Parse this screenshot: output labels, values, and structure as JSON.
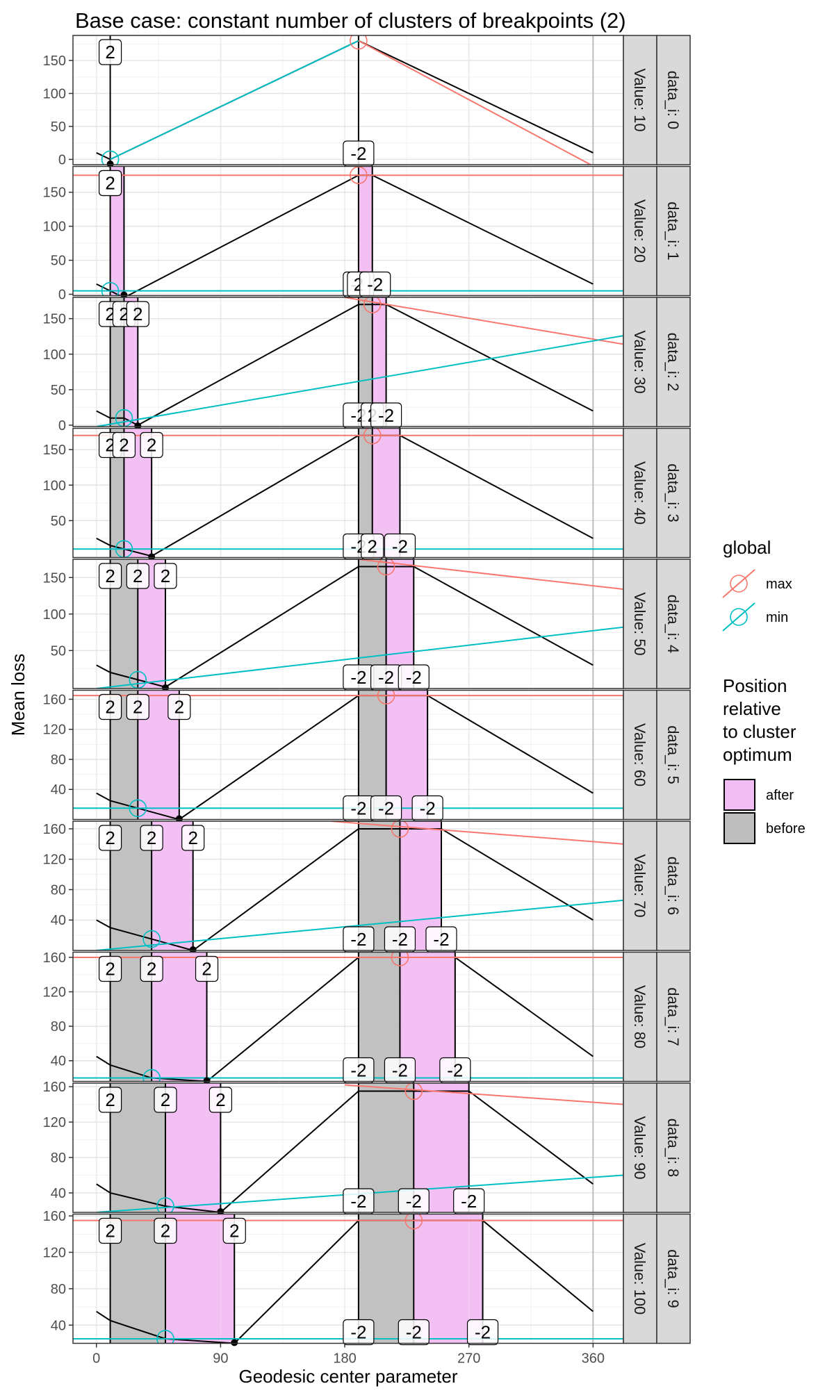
{
  "chart_data": {
    "type": "line",
    "title": "Base case: constant number of clusters of breakpoints (2)",
    "xlabel": "Geodesic center parameter",
    "ylabel": "Mean loss",
    "xlim": [
      -17,
      382
    ],
    "x_ticks": [
      0,
      90,
      180,
      270,
      360
    ],
    "grid": true,
    "legend_position": "right",
    "legends": {
      "global": {
        "title": "global",
        "entries": [
          {
            "label": "max",
            "color": "#F8766D"
          },
          {
            "label": "min",
            "color": "#00BFC4"
          }
        ]
      },
      "position": {
        "title": "Position relative to cluster optimum",
        "entries": [
          {
            "label": "after",
            "color": "#F2BDF2"
          },
          {
            "label": "before",
            "color": "#BEBEBE"
          }
        ]
      }
    },
    "panels": [
      {
        "strip_value": "Value: 10",
        "strip_data": "data_i: 0",
        "ylim": [
          -8,
          188
        ],
        "y_ticks": [
          0,
          50,
          100,
          150
        ],
        "loss": [
          [
            0,
            10
          ],
          [
            10,
            0
          ],
          [
            190,
            180
          ],
          [
            360,
            10
          ]
        ],
        "left_cluster": [
          10,
          10,
          10
        ],
        "right_cluster": [
          190,
          190,
          190
        ],
        "max_line": [
          [
            190,
            180
          ],
          [
            360,
            -10
          ]
        ],
        "min_line": [
          [
            10,
            0
          ],
          [
            190,
            180
          ]
        ],
        "max_point": [
          190,
          180
        ],
        "min_point": [
          10,
          0
        ],
        "left_labels": [
          "2"
        ],
        "right_labels": [
          "-2"
        ]
      },
      {
        "strip_value": "Value: 20",
        "strip_data": "data_i: 1",
        "ylim": [
          -2,
          188
        ],
        "y_ticks": [
          0,
          50,
          100,
          150
        ],
        "loss": [
          [
            0,
            15
          ],
          [
            10,
            5
          ],
          [
            20,
            -5
          ],
          [
            190,
            175
          ],
          [
            200,
            175
          ],
          [
            360,
            15
          ]
        ],
        "left_cluster": [
          10,
          10,
          20
        ],
        "right_cluster": [
          190,
          190,
          200
        ],
        "max_line": [
          [
            -17,
            175
          ],
          [
            382,
            175
          ]
        ],
        "min_line": [
          [
            -17,
            5
          ],
          [
            382,
            5
          ]
        ],
        "max_point": [
          190,
          175
        ],
        "min_point": [
          10,
          5
        ],
        "left_labels": [
          "2",
          "2"
        ],
        "right_labels": [
          "-2",
          "2",
          "-2"
        ]
      },
      {
        "strip_value": "Value: 30",
        "strip_data": "data_i: 2",
        "ylim": [
          -2,
          180
        ],
        "y_ticks": [
          0,
          50,
          100,
          150
        ],
        "loss": [
          [
            0,
            20
          ],
          [
            10,
            10
          ],
          [
            20,
            10
          ],
          [
            30,
            0
          ],
          [
            190,
            170
          ],
          [
            200,
            170
          ],
          [
            210,
            170
          ],
          [
            360,
            20
          ]
        ],
        "left_cluster": [
          10,
          20,
          30
        ],
        "right_cluster": [
          190,
          200,
          210
        ],
        "max_line": [
          [
            180,
            180
          ],
          [
            382,
            114
          ]
        ],
        "min_line": [
          [
            0,
            -2
          ],
          [
            382,
            126
          ]
        ],
        "max_point": [
          200,
          170
        ],
        "min_point": [
          20,
          10
        ],
        "left_labels": [
          "2",
          "2",
          "2"
        ],
        "right_labels": [
          "-2",
          "2",
          "-2"
        ]
      },
      {
        "strip_value": "Value: 40",
        "strip_data": "data_i: 3",
        "ylim": [
          -2,
          180
        ],
        "y_ticks": [
          50,
          100,
          150
        ],
        "loss": [
          [
            0,
            25
          ],
          [
            10,
            15
          ],
          [
            20,
            10
          ],
          [
            40,
            0
          ],
          [
            190,
            170
          ],
          [
            200,
            170
          ],
          [
            220,
            170
          ],
          [
            360,
            25
          ]
        ],
        "left_cluster": [
          10,
          20,
          40
        ],
        "right_cluster": [
          190,
          200,
          220
        ],
        "max_line": [
          [
            -17,
            170
          ],
          [
            382,
            170
          ]
        ],
        "min_line": [
          [
            -17,
            10
          ],
          [
            382,
            10
          ]
        ],
        "max_point": [
          200,
          170
        ],
        "min_point": [
          20,
          10
        ],
        "left_labels": [
          "2",
          "2",
          "2"
        ],
        "right_labels": [
          "-2",
          "2",
          "-2"
        ]
      },
      {
        "strip_value": "Value: 50",
        "strip_data": "data_i: 4",
        "ylim": [
          -2,
          175
        ],
        "y_ticks": [
          50,
          100,
          150
        ],
        "loss": [
          [
            0,
            30
          ],
          [
            10,
            20
          ],
          [
            30,
            10
          ],
          [
            50,
            0
          ],
          [
            190,
            165
          ],
          [
            210,
            165
          ],
          [
            230,
            165
          ],
          [
            360,
            30
          ]
        ],
        "left_cluster": [
          10,
          30,
          50
        ],
        "right_cluster": [
          190,
          210,
          230
        ],
        "max_line": [
          [
            190,
            175
          ],
          [
            382,
            134
          ]
        ],
        "min_line": [
          [
            0,
            -2
          ],
          [
            382,
            82
          ]
        ],
        "max_point": [
          210,
          165
        ],
        "min_point": [
          30,
          10
        ],
        "left_labels": [
          "2",
          "2",
          "2"
        ],
        "right_labels": [
          "-2",
          "-2",
          "-2"
        ]
      },
      {
        "strip_value": "Value: 60",
        "strip_data": "data_i: 5",
        "ylim": [
          0,
          172
        ],
        "y_ticks": [
          40,
          80,
          120,
          160
        ],
        "loss": [
          [
            0,
            35
          ],
          [
            10,
            25
          ],
          [
            30,
            15
          ],
          [
            60,
            0
          ],
          [
            190,
            165
          ],
          [
            210,
            165
          ],
          [
            240,
            165
          ],
          [
            360,
            35
          ]
        ],
        "left_cluster": [
          10,
          30,
          60
        ],
        "right_cluster": [
          190,
          210,
          240
        ],
        "max_line": [
          [
            -17,
            165
          ],
          [
            382,
            165
          ]
        ],
        "min_line": [
          [
            -17,
            15
          ],
          [
            382,
            15
          ]
        ],
        "max_point": [
          210,
          165
        ],
        "min_point": [
          30,
          15
        ],
        "left_labels": [
          "2",
          "2",
          "2"
        ],
        "right_labels": [
          "-2",
          "-2",
          "-2"
        ]
      },
      {
        "strip_value": "Value: 70",
        "strip_data": "data_i: 6",
        "ylim": [
          0,
          170
        ],
        "y_ticks": [
          40,
          80,
          120,
          160
        ],
        "loss": [
          [
            0,
            40
          ],
          [
            10,
            30
          ],
          [
            40,
            15
          ],
          [
            70,
            0
          ],
          [
            190,
            160
          ],
          [
            220,
            160
          ],
          [
            250,
            160
          ],
          [
            360,
            40
          ]
        ],
        "left_cluster": [
          10,
          40,
          70
        ],
        "right_cluster": [
          190,
          220,
          250
        ],
        "max_line": [
          [
            170,
            170
          ],
          [
            382,
            140
          ]
        ],
        "min_line": [
          [
            0,
            0
          ],
          [
            382,
            66
          ]
        ],
        "max_point": [
          220,
          160
        ],
        "min_point": [
          40,
          15
        ],
        "left_labels": [
          "2",
          "2",
          "2"
        ],
        "right_labels": [
          "-2",
          "-2",
          "-2"
        ]
      },
      {
        "strip_value": "Value: 80",
        "strip_data": "data_i: 7",
        "ylim": [
          16,
          166
        ],
        "y_ticks": [
          40,
          80,
          120,
          160
        ],
        "loss": [
          [
            0,
            45
          ],
          [
            10,
            35
          ],
          [
            40,
            20
          ],
          [
            80,
            16
          ],
          [
            190,
            160
          ],
          [
            220,
            160
          ],
          [
            260,
            160
          ],
          [
            360,
            45
          ]
        ],
        "left_cluster": [
          10,
          40,
          80
        ],
        "right_cluster": [
          190,
          220,
          260
        ],
        "max_line": [
          [
            -17,
            160
          ],
          [
            382,
            160
          ]
        ],
        "min_line": [
          [
            -17,
            20
          ],
          [
            382,
            20
          ]
        ],
        "max_point": [
          220,
          160
        ],
        "min_point": [
          40,
          20
        ],
        "left_labels": [
          "2",
          "2",
          "2"
        ],
        "right_labels": [
          "-2",
          "-2",
          "-2"
        ]
      },
      {
        "strip_value": "Value: 90",
        "strip_data": "data_i: 8",
        "ylim": [
          18,
          164
        ],
        "y_ticks": [
          40,
          80,
          120,
          160
        ],
        "loss": [
          [
            0,
            50
          ],
          [
            10,
            40
          ],
          [
            50,
            25
          ],
          [
            90,
            18
          ],
          [
            190,
            155
          ],
          [
            230,
            155
          ],
          [
            270,
            155
          ],
          [
            360,
            50
          ]
        ],
        "left_cluster": [
          10,
          50,
          90
        ],
        "right_cluster": [
          190,
          230,
          270
        ],
        "max_line": [
          [
            180,
            162
          ],
          [
            382,
            140
          ]
        ],
        "min_line": [
          [
            0,
            18
          ],
          [
            382,
            60
          ]
        ],
        "max_point": [
          230,
          155
        ],
        "min_point": [
          50,
          25
        ],
        "left_labels": [
          "2",
          "2",
          "2"
        ],
        "right_labels": [
          "-2",
          "-2",
          "-2"
        ]
      },
      {
        "strip_value": "Value: 100",
        "strip_data": "data_i: 9",
        "ylim": [
          20,
          162
        ],
        "y_ticks": [
          40,
          80,
          120,
          160
        ],
        "loss": [
          [
            0,
            55
          ],
          [
            10,
            45
          ],
          [
            50,
            25
          ],
          [
            100,
            20
          ],
          [
            190,
            155
          ],
          [
            230,
            155
          ],
          [
            280,
            155
          ],
          [
            360,
            55
          ]
        ],
        "left_cluster": [
          10,
          50,
          100
        ],
        "right_cluster": [
          190,
          230,
          280
        ],
        "max_line": [
          [
            -17,
            155
          ],
          [
            382,
            155
          ]
        ],
        "min_line": [
          [
            -17,
            25
          ],
          [
            382,
            25
          ]
        ],
        "max_point": [
          230,
          155
        ],
        "min_point": [
          50,
          25
        ],
        "left_labels": [
          "2",
          "2",
          "2"
        ],
        "right_labels": [
          "-2",
          "-2",
          "-2"
        ]
      }
    ]
  }
}
